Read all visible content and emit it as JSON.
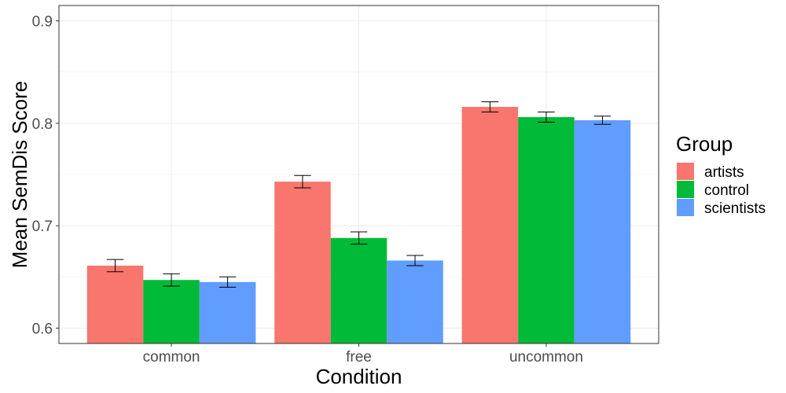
{
  "chart_data": {
    "type": "bar",
    "xlabel": "Condition",
    "ylabel": "Mean SemDis Score",
    "categories": [
      "common",
      "free",
      "uncommon"
    ],
    "ylim": [
      0.585,
      0.915
    ],
    "yticks": [
      0.6,
      0.7,
      0.8,
      0.9
    ],
    "ytick_labels": [
      "0.6",
      "0.7",
      "0.8",
      "0.9"
    ],
    "grid": true,
    "legend": {
      "title": "Group",
      "placement": "right"
    },
    "series": [
      {
        "name": "artists",
        "color": "#F8766D",
        "values": [
          0.661,
          0.743,
          0.816
        ],
        "errors": [
          0.006,
          0.006,
          0.005
        ]
      },
      {
        "name": "control",
        "color": "#00BA38",
        "values": [
          0.647,
          0.688,
          0.806
        ],
        "errors": [
          0.006,
          0.006,
          0.005
        ]
      },
      {
        "name": "scientists",
        "color": "#619CFF",
        "values": [
          0.645,
          0.666,
          0.803
        ],
        "errors": [
          0.005,
          0.005,
          0.004
        ]
      }
    ]
  }
}
